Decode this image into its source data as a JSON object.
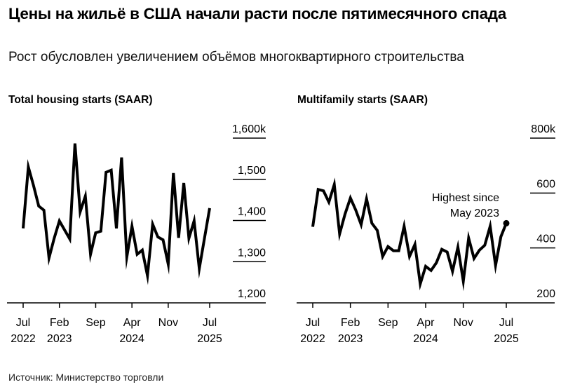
{
  "header": {
    "title": "Цены на жильё в США начали расти после пятимесячного спада",
    "subtitle": "Рост обусловлен увеличением объёмов многоквартирного строительства"
  },
  "footer": {
    "source": "Источник: Министерство торговли"
  },
  "colors": {
    "line": "#000000",
    "grid": "#000000",
    "background": "#ffffff"
  },
  "chart_data": [
    {
      "type": "line",
      "title": "Total housing starts (SAAR)",
      "xlabel": "",
      "ylabel": "",
      "unit": "k",
      "ylim": [
        1200,
        1600
      ],
      "yticks": [
        "1,600k",
        "1,500",
        "1,400",
        "1,300",
        "1,200"
      ],
      "ytick_values": [
        1600,
        1500,
        1400,
        1300,
        1200
      ],
      "xticks": [
        {
          "month": "Jul",
          "year": "2022"
        },
        {
          "month": "Feb",
          "year": "2023"
        },
        {
          "month": "Sep",
          "year": ""
        },
        {
          "month": "Apr",
          "year": "2024"
        },
        {
          "month": "Nov",
          "year": ""
        },
        {
          "month": "Jul",
          "year": "2025"
        }
      ],
      "x_start": "2022-07",
      "x_end": "2025-07",
      "grid": true,
      "legend": "none",
      "series": [
        {
          "name": "Total housing starts",
          "values": [
            1381,
            1530,
            1485,
            1435,
            1425,
            1309,
            1357,
            1399,
            1377,
            1355,
            1587,
            1421,
            1459,
            1318,
            1370,
            1374,
            1517,
            1522,
            1381,
            1553,
            1311,
            1386,
            1318,
            1328,
            1266,
            1391,
            1360,
            1353,
            1294,
            1515,
            1358,
            1491,
            1357,
            1399,
            1283,
            1357,
            1430
          ]
        }
      ]
    },
    {
      "type": "line",
      "title": "Multifamily starts (SAAR)",
      "xlabel": "",
      "ylabel": "",
      "unit": "k",
      "ylim": [
        200,
        800
      ],
      "yticks": [
        "800k",
        "600",
        "400",
        "200"
      ],
      "ytick_values": [
        800,
        600,
        400,
        200
      ],
      "xticks": [
        {
          "month": "Jul",
          "year": "2022"
        },
        {
          "month": "Feb",
          "year": "2023"
        },
        {
          "month": "Sep",
          "year": ""
        },
        {
          "month": "Apr",
          "year": "2024"
        },
        {
          "month": "Nov",
          "year": ""
        },
        {
          "month": "Jul",
          "year": "2025"
        }
      ],
      "x_start": "2022-07",
      "x_end": "2025-07",
      "grid": true,
      "legend": "none",
      "annotations": [
        {
          "text_line1": "Highest since",
          "text_line2": "May 2023",
          "point": "2025-07"
        }
      ],
      "series": [
        {
          "name": "Multifamily starts",
          "values": [
            477,
            613,
            608,
            567,
            631,
            451,
            523,
            582,
            538,
            485,
            579,
            490,
            464,
            369,
            405,
            390,
            390,
            479,
            369,
            413,
            269,
            333,
            318,
            346,
            395,
            385,
            315,
            403,
            279,
            436,
            362,
            392,
            410,
            479,
            336,
            441,
            490
          ]
        }
      ]
    }
  ]
}
